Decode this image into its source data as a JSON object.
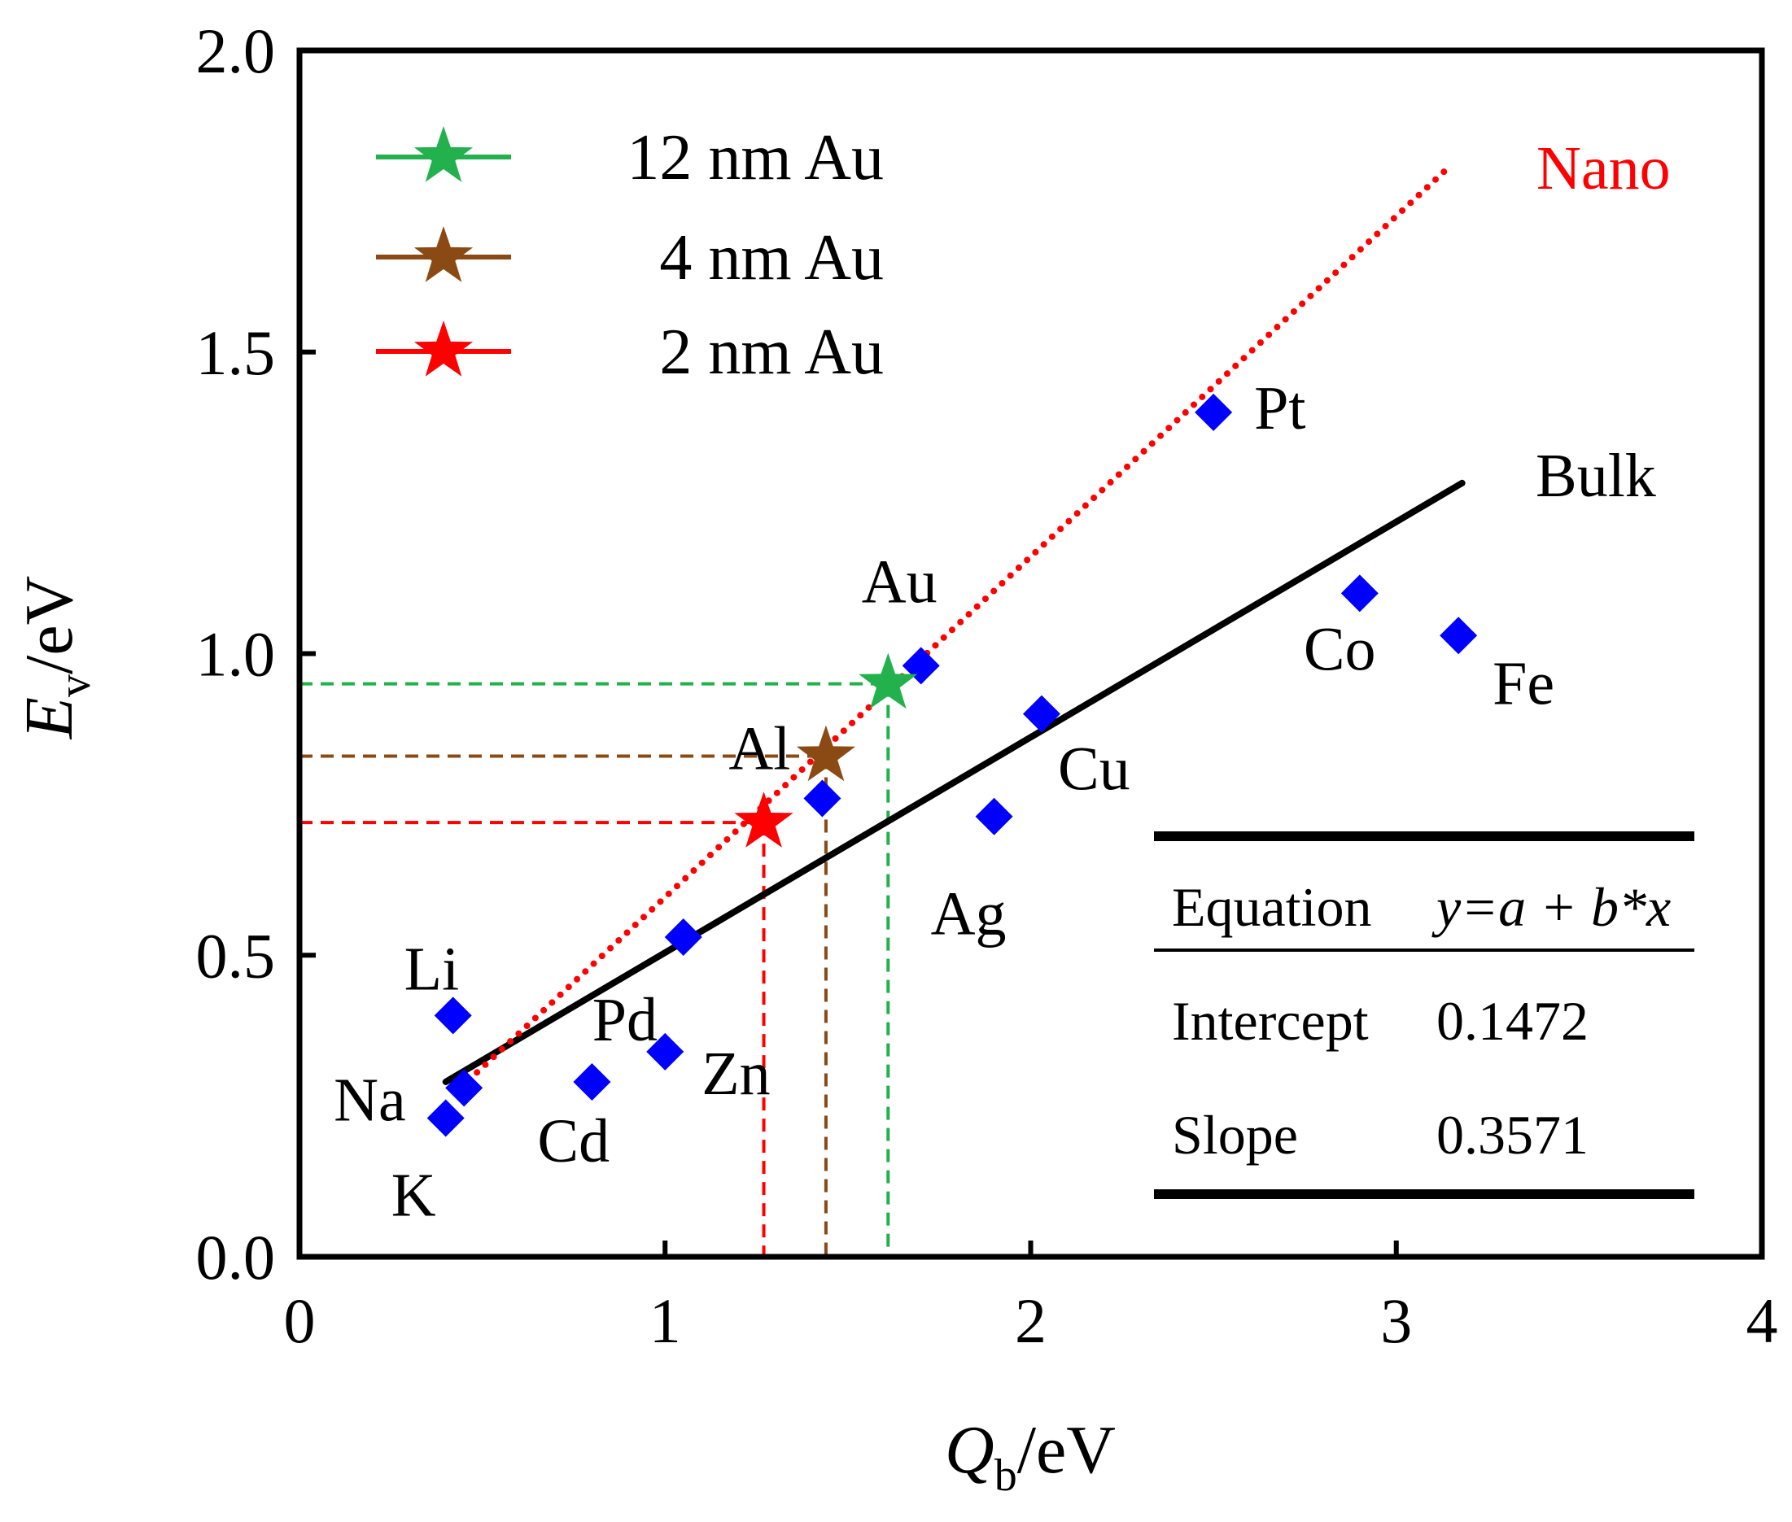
{
  "chart_data": {
    "type": "scatter",
    "xlabel": {
      "main": "Q",
      "sub": "b",
      "unit": "/eV"
    },
    "ylabel": {
      "main": "E",
      "sub": "v",
      "unit": "/eV"
    },
    "xlim": [
      0,
      4
    ],
    "ylim": [
      0,
      2
    ],
    "xticks": [
      {
        "value": 0,
        "label": "0"
      },
      {
        "value": 1,
        "label": "1"
      },
      {
        "value": 2,
        "label": "2"
      },
      {
        "value": 3,
        "label": "3"
      },
      {
        "value": 4,
        "label": "4"
      }
    ],
    "yticks": [
      {
        "value": 0,
        "label": "0.0"
      },
      {
        "value": 0.5,
        "label": "0.5"
      },
      {
        "value": 1,
        "label": "1.0"
      },
      {
        "value": 1.5,
        "label": "1.5"
      },
      {
        "value": 2,
        "label": "2.0"
      }
    ],
    "elements": [
      {
        "label": "Li",
        "x": 0.42,
        "y": 0.4
      },
      {
        "label": "Na",
        "x": 0.45,
        "y": 0.28
      },
      {
        "label": "K",
        "x": 0.4,
        "y": 0.23
      },
      {
        "label": "Cd",
        "x": 0.8,
        "y": 0.29
      },
      {
        "label": "Zn",
        "x": 1.0,
        "y": 0.34
      },
      {
        "label": "Pd",
        "x": 1.05,
        "y": 0.53
      },
      {
        "label": "Al",
        "x": 1.43,
        "y": 0.76
      },
      {
        "label": "Au",
        "x": 1.7,
        "y": 0.98
      },
      {
        "label": "Ag",
        "x": 1.9,
        "y": 0.73
      },
      {
        "label": "Cu",
        "x": 2.03,
        "y": 0.9
      },
      {
        "label": "Pt",
        "x": 2.5,
        "y": 1.4
      },
      {
        "label": "Co",
        "x": 2.9,
        "y": 1.1
      },
      {
        "label": "Fe",
        "x": 3.17,
        "y": 1.03
      }
    ],
    "au_nanoparticles": [
      {
        "name": "12 nm Au",
        "x": 1.61,
        "y": 0.95,
        "color": "#22b14c"
      },
      {
        "name": "4 nm Au",
        "x": 1.44,
        "y": 0.83,
        "color": "#8b4a14"
      },
      {
        "name": "2 nm Au",
        "x": 1.27,
        "y": 0.72,
        "color": "#ff0000"
      }
    ],
    "bulk_fit": {
      "label": "Bulk",
      "x_range": [
        0.4,
        3.18
      ],
      "equation": "y=a + b*x",
      "intercept": 0.1472,
      "slope": 0.3571,
      "color": "#000000"
    },
    "nano_fit": {
      "label": "Nano",
      "x_range": [
        0.44,
        3.15
      ],
      "y_range": [
        0.28,
        1.81
      ],
      "color": "#ff0000"
    },
    "stats_table": {
      "equation_label": "Equation",
      "equation_value": "y=a + b*x",
      "intercept_label": "Intercept",
      "intercept_value": "0.1472",
      "slope_label": "Slope",
      "slope_value": "0.3571"
    },
    "marker_color": "#0000ff",
    "frame_color": "#000000"
  }
}
